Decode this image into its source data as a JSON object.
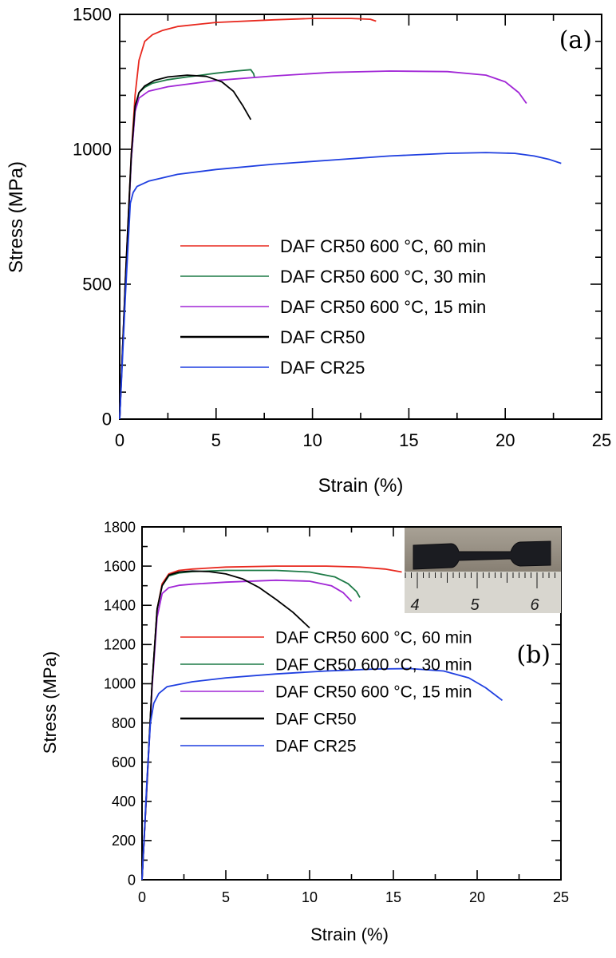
{
  "chart_data": [
    {
      "type": "line",
      "panel_label": "(a)",
      "xlabel": "Strain (%)",
      "ylabel": "Stress (MPa)",
      "xlim": [
        0,
        25
      ],
      "ylim": [
        0,
        1500
      ],
      "xticks": [
        0,
        5,
        10,
        15,
        20,
        25
      ],
      "yticks": [
        0,
        500,
        1000,
        1500
      ],
      "grid": false,
      "legend_position": "center-right",
      "series": [
        {
          "name": "DAF CR50 600 °C, 60 min",
          "color": "#e8281e",
          "x": [
            0,
            0.3,
            0.6,
            0.8,
            1.0,
            1.3,
            1.7,
            2.2,
            3.0,
            5.0,
            8.0,
            10.0,
            12.0,
            13.0,
            13.3
          ],
          "y": [
            0,
            520,
            980,
            1200,
            1330,
            1400,
            1425,
            1440,
            1455,
            1470,
            1480,
            1485,
            1485,
            1482,
            1475
          ]
        },
        {
          "name": "DAF CR50 600 °C, 30 min",
          "color": "#1d7a46",
          "x": [
            0,
            0.3,
            0.6,
            0.8,
            1.0,
            1.3,
            1.7,
            2.5,
            3.5,
            5.0,
            6.0,
            6.8,
            6.95,
            7.0
          ],
          "y": [
            0,
            510,
            960,
            1150,
            1210,
            1230,
            1245,
            1258,
            1268,
            1282,
            1290,
            1295,
            1280,
            1265
          ]
        },
        {
          "name": "DAF CR50 600 °C, 15 min",
          "color": "#a126d6",
          "x": [
            0,
            0.3,
            0.6,
            0.8,
            1.0,
            1.5,
            2.5,
            5.0,
            8.0,
            11.0,
            14.0,
            17.0,
            19.0,
            20.0,
            20.7,
            21.1
          ],
          "y": [
            0,
            510,
            960,
            1140,
            1190,
            1215,
            1232,
            1255,
            1272,
            1285,
            1290,
            1288,
            1275,
            1250,
            1210,
            1170
          ]
        },
        {
          "name": "DAF CR50",
          "color": "#000000",
          "x": [
            0,
            0.3,
            0.6,
            0.8,
            1.0,
            1.3,
            1.8,
            2.5,
            3.5,
            4.5,
            5.3,
            5.9,
            6.4,
            6.8
          ],
          "y": [
            0,
            520,
            980,
            1160,
            1210,
            1235,
            1255,
            1268,
            1275,
            1270,
            1250,
            1215,
            1160,
            1110
          ]
        },
        {
          "name": "DAF CR25",
          "color": "#1f3fe0",
          "x": [
            0,
            0.3,
            0.55,
            0.7,
            0.9,
            1.5,
            3.0,
            5.0,
            8.0,
            11.0,
            14.0,
            17.0,
            19.0,
            20.5,
            21.5,
            22.3,
            22.9
          ],
          "y": [
            0,
            460,
            800,
            840,
            862,
            882,
            907,
            925,
            945,
            960,
            975,
            985,
            988,
            985,
            975,
            962,
            948
          ]
        }
      ]
    },
    {
      "type": "line",
      "panel_label": "(b)",
      "xlabel": "Strain (%)",
      "ylabel": "Stress (MPa)",
      "xlim": [
        0,
        25
      ],
      "ylim": [
        0,
        1800
      ],
      "xticks": [
        0,
        5,
        10,
        15,
        20,
        25
      ],
      "yticks": [
        0,
        200,
        400,
        600,
        800,
        1000,
        1200,
        1400,
        1600,
        1800
      ],
      "grid": false,
      "legend_position": "center-right",
      "inset": {
        "kind": "photo",
        "scale_marks": [
          "4",
          "5",
          "6"
        ]
      },
      "series": [
        {
          "name": "DAF CR50 600 °C, 60 min",
          "color": "#e8281e",
          "x": [
            0,
            0.3,
            0.6,
            0.9,
            1.2,
            1.6,
            2.2,
            3.0,
            5.0,
            8.0,
            11.0,
            13.0,
            14.5,
            15.5
          ],
          "y": [
            0,
            500,
            1000,
            1380,
            1510,
            1560,
            1578,
            1585,
            1595,
            1600,
            1600,
            1595,
            1585,
            1570
          ]
        },
        {
          "name": "DAF CR50 600 °C, 30 min",
          "color": "#1d7a46",
          "x": [
            0,
            0.3,
            0.6,
            0.9,
            1.2,
            1.6,
            2.2,
            3.0,
            5.0,
            8.0,
            10.0,
            11.5,
            12.3,
            12.8,
            13.0
          ],
          "y": [
            0,
            500,
            1000,
            1380,
            1500,
            1550,
            1565,
            1572,
            1578,
            1578,
            1570,
            1545,
            1510,
            1470,
            1440
          ]
        },
        {
          "name": "DAF CR50 600 °C, 15 min",
          "color": "#a126d6",
          "x": [
            0,
            0.3,
            0.6,
            0.9,
            1.2,
            1.6,
            2.2,
            3.0,
            5.0,
            8.0,
            10.0,
            11.3,
            12.0,
            12.5
          ],
          "y": [
            0,
            490,
            980,
            1340,
            1460,
            1490,
            1502,
            1508,
            1518,
            1528,
            1523,
            1500,
            1465,
            1420
          ]
        },
        {
          "name": "DAF CR50",
          "color": "#000000",
          "x": [
            0,
            0.3,
            0.6,
            0.9,
            1.2,
            1.6,
            2.2,
            3.0,
            4.0,
            5.0,
            6.0,
            7.0,
            8.0,
            9.0,
            10.0
          ],
          "y": [
            0,
            500,
            1000,
            1380,
            1500,
            1555,
            1570,
            1575,
            1572,
            1560,
            1535,
            1490,
            1430,
            1365,
            1285
          ]
        },
        {
          "name": "DAF CR25",
          "color": "#1f3fe0",
          "x": [
            0,
            0.3,
            0.5,
            0.7,
            1.0,
            1.5,
            3.0,
            5.0,
            8.0,
            11.0,
            14.0,
            16.0,
            18.0,
            19.5,
            20.5,
            21.5
          ],
          "y": [
            0,
            520,
            800,
            900,
            950,
            985,
            1010,
            1030,
            1050,
            1065,
            1075,
            1077,
            1065,
            1030,
            980,
            915
          ]
        }
      ]
    }
  ]
}
